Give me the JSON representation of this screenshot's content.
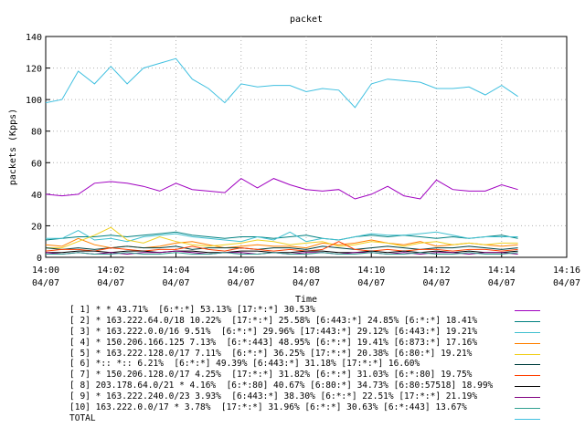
{
  "chart_data": {
    "type": "line",
    "title": "packet",
    "ylabel": "packets (Kpps)",
    "xlabel": "Time",
    "ylim": [
      0,
      140
    ],
    "yticks": [
      "0",
      "20",
      "40",
      "60",
      "80",
      "100",
      "120",
      "140"
    ],
    "xlim_minutes": [
      0,
      16
    ],
    "xticks": [
      {
        "time": "14:00",
        "date": "04/07"
      },
      {
        "time": "14:02",
        "date": "04/07"
      },
      {
        "time": "14:04",
        "date": "04/07"
      },
      {
        "time": "14:06",
        "date": "04/07"
      },
      {
        "time": "14:08",
        "date": "04/07"
      },
      {
        "time": "14:10",
        "date": "04/07"
      },
      {
        "time": "14:12",
        "date": "04/07"
      },
      {
        "time": "14:14",
        "date": "04/07"
      },
      {
        "time": "14:16",
        "date": "04/07"
      }
    ],
    "x": [
      "14:00:00",
      "14:00:30",
      "14:01:00",
      "14:01:30",
      "14:02:00",
      "14:02:30",
      "14:03:00",
      "14:03:30",
      "14:04:00",
      "14:04:30",
      "14:05:00",
      "14:05:30",
      "14:06:00",
      "14:06:30",
      "14:07:00",
      "14:07:30",
      "14:08:00",
      "14:08:30",
      "14:09:00",
      "14:09:30",
      "14:10:00",
      "14:10:30",
      "14:11:00",
      "14:11:30",
      "14:12:00",
      "14:12:30",
      "14:13:00",
      "14:13:30",
      "14:14:00",
      "14:14:30"
    ],
    "series": [
      {
        "name": "[ 1] * * 43.71%  [6:*:*] 53.13% [17:*:*] 30.53%",
        "color": "#a000c0",
        "values": [
          40,
          39,
          40,
          47,
          48,
          47,
          45,
          42,
          47,
          43,
          42,
          41,
          50,
          44,
          50,
          46,
          43,
          42,
          43,
          37,
          40,
          45,
          39,
          37,
          49,
          43,
          42,
          42,
          46,
          43
        ]
      },
      {
        "name": "[ 2] * 163.222.64.0/18 10.22%  [17:*:*] 25.58% [6:443:*] 24.85% [6:*:*] 18.41%",
        "color": "#008080",
        "values": [
          11,
          12,
          13,
          13,
          14,
          13,
          14,
          15,
          16,
          14,
          13,
          12,
          13,
          13,
          12,
          13,
          14,
          12,
          11,
          13,
          14,
          13,
          14,
          13,
          12,
          13,
          12,
          13,
          14,
          12
        ]
      },
      {
        "name": "[ 3] * 163.222.0.0/16 9.51%  [6:*:*] 29.96% [17:443:*] 29.12% [6:443:*] 19.21%",
        "color": "#40c0d0",
        "values": [
          12,
          12,
          17,
          11,
          12,
          10,
          13,
          14,
          15,
          13,
          12,
          11,
          10,
          13,
          11,
          16,
          10,
          12,
          11,
          13,
          15,
          14,
          14,
          15,
          16,
          14,
          12,
          13,
          13,
          13
        ]
      },
      {
        "name": "[ 4] * 150.206.166.125 7.13%  [6:*:443] 48.95% [6:*:*] 19.41% [6:873:*] 17.16%",
        "color": "#ff8000",
        "values": [
          8,
          7,
          12,
          8,
          6,
          7,
          6,
          7,
          9,
          10,
          8,
          6,
          7,
          8,
          7,
          7,
          6,
          9,
          8,
          9,
          11,
          9,
          8,
          10,
          7,
          8,
          9,
          8,
          7,
          8
        ]
      },
      {
        "name": "[ 5] * 163.222.128.0/17 7.11%  [6:*:*] 36.25% [17:*:*] 20.38% [6:80:*] 19.21%",
        "color": "#f0d020",
        "values": [
          6,
          6,
          10,
          14,
          19,
          11,
          9,
          13,
          10,
          8,
          7,
          8,
          9,
          11,
          10,
          8,
          9,
          10,
          7,
          8,
          10,
          9,
          7,
          9,
          10,
          8,
          9,
          8,
          9,
          9
        ]
      },
      {
        "name": "[ 6] *:: *:: 6.21%  [6:*:*] 49.39% [6:443:*] 31.18% [17:*:*] 16.60%",
        "color": "#004040",
        "values": [
          6,
          5,
          6,
          5,
          6,
          7,
          6,
          6,
          7,
          5,
          6,
          6,
          6,
          5,
          6,
          6,
          5,
          7,
          6,
          5,
          6,
          7,
          6,
          5,
          6,
          6,
          7,
          6,
          5,
          6
        ]
      },
      {
        "name": "[ 7] * 150.206.128.0/17 4.25%  [17:*:*] 31.82% [6:*:*] 31.03% [6:*:80] 19.75%",
        "color": "#ff4000",
        "values": [
          4,
          5,
          5,
          4,
          6,
          5,
          4,
          5,
          5,
          7,
          5,
          4,
          6,
          5,
          4,
          5,
          4,
          5,
          10,
          5,
          4,
          5,
          4,
          5,
          5,
          4,
          5,
          5,
          4,
          5
        ]
      },
      {
        "name": "[ 8] 203.178.64.0/21 * 4.16%  [6:*:80] 40.67% [6:80:*] 34.73% [6:80:57518] 18.99%",
        "color": "#000000",
        "values": [
          3,
          3,
          4,
          4,
          3,
          4,
          4,
          3,
          4,
          4,
          3,
          3,
          4,
          4,
          3,
          3,
          4,
          4,
          3,
          3,
          4,
          3,
          4,
          3,
          4,
          3,
          4,
          3,
          3,
          4
        ]
      },
      {
        "name": "[ 9] * 163.222.240.0/23 3.93%  [6:443:*] 38.30% [6:*:*] 22.51% [17:*:*] 21.19%",
        "color": "#800080",
        "values": [
          3,
          2,
          3,
          2,
          3,
          2,
          3,
          3,
          4,
          3,
          2,
          3,
          3,
          2,
          3,
          2,
          3,
          3,
          2,
          3,
          3,
          2,
          3,
          2,
          3,
          3,
          2,
          3,
          3,
          2
        ]
      },
      {
        "name": "[10] 163.222.0.0/17 * 3.78%  [17:*:*] 31.96% [6:*:*] 30.63% [6:*:443] 13.67%",
        "color": "#30a090",
        "values": [
          2,
          2,
          3,
          2,
          2,
          3,
          2,
          2,
          3,
          2,
          2,
          3,
          2,
          2,
          3,
          2,
          2,
          3,
          2,
          2,
          3,
          2,
          2,
          3,
          2,
          2,
          3,
          2,
          2,
          3
        ]
      },
      {
        "name": "TOTAL",
        "color": "#40c0e0",
        "values": [
          98,
          100,
          118,
          110,
          121,
          110,
          120,
          123,
          126,
          113,
          107,
          98,
          110,
          108,
          109,
          109,
          105,
          107,
          106,
          95,
          110,
          113,
          112,
          111,
          107,
          107,
          108,
          103,
          109,
          102
        ]
      }
    ]
  }
}
